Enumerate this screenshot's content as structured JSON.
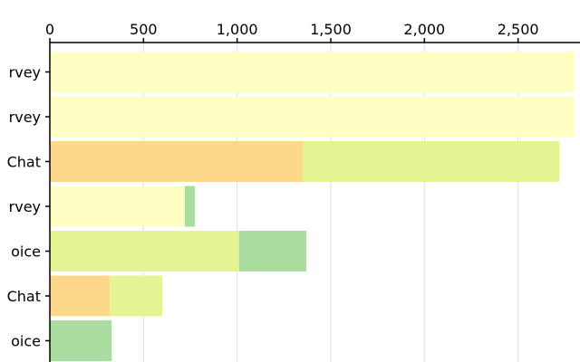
{
  "chart_data": {
    "type": "bar",
    "orientation": "horizontal",
    "stacked": true,
    "xlim": [
      0,
      2700
    ],
    "x_ticks": [
      {
        "value": 0,
        "label": "0"
      },
      {
        "value": 500,
        "label": "500"
      },
      {
        "value": 1000,
        "label": "1,000"
      },
      {
        "value": 1500,
        "label": "1,500"
      },
      {
        "value": 2000,
        "label": "2,000"
      },
      {
        "value": 2500,
        "label": "2,500"
      }
    ],
    "x_axis_position": "top",
    "grid": true,
    "categories": [
      "rvey",
      "rvey",
      "Chat",
      "rvey",
      "oice",
      "Chat",
      "oice"
    ],
    "category_labels_clipped": true,
    "series": [
      {
        "color": "#fed88a",
        "values": [
          0,
          0,
          1350,
          0,
          0,
          320,
          0
        ]
      },
      {
        "color": "#ffffc4",
        "values": [
          2800,
          2800,
          0,
          720,
          0,
          0,
          0
        ]
      },
      {
        "color": "#e5f493",
        "values": [
          0,
          0,
          1370,
          0,
          1010,
          280,
          0
        ]
      },
      {
        "color": "#acdda0",
        "values": [
          0,
          0,
          0,
          55,
          360,
          0,
          330
        ]
      }
    ]
  }
}
